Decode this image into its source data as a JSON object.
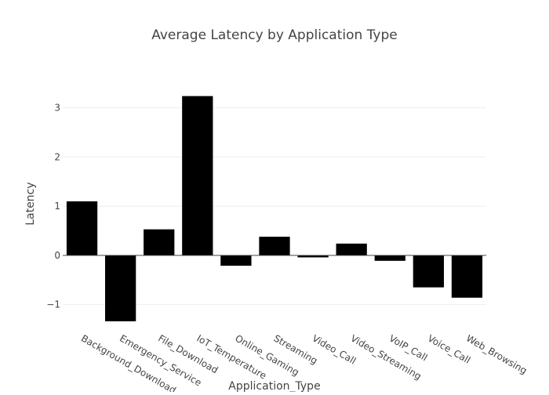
{
  "chart_data": {
    "type": "bar",
    "title": "Average Latency by Application Type",
    "xlabel": "Application_Type",
    "ylabel": "Latency",
    "categories": [
      "Background_Download",
      "Emergency_Service",
      "File_Download",
      "IoT_Temperature",
      "Online_Gaming",
      "Streaming",
      "Video_Call",
      "Video_Streaming",
      "VoIP_Call",
      "Voice_Call",
      "Web_Browsing"
    ],
    "values": [
      1.1,
      -1.34,
      0.53,
      3.24,
      -0.21,
      0.38,
      -0.04,
      0.24,
      -0.11,
      -0.65,
      -0.86
    ],
    "ylim": [
      -1.5,
      3.6
    ],
    "yticks": [
      -1,
      0,
      1,
      2,
      3
    ],
    "ytick_labels": [
      "−1",
      "0",
      "1",
      "2",
      "3"
    ],
    "grid": true,
    "bar_color": "#000000",
    "grid_color": "#eeeeee",
    "zero_line_color": "#444444",
    "text_color": "#444444"
  }
}
